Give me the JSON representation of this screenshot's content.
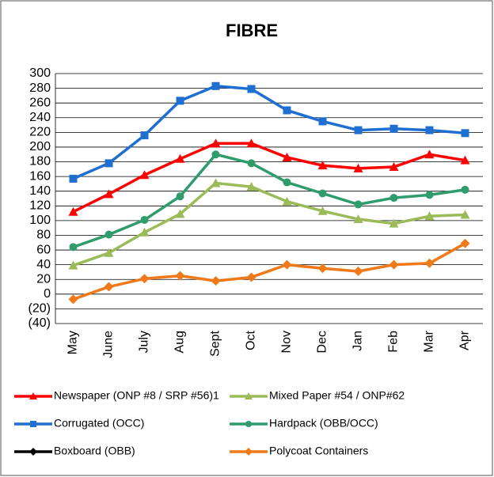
{
  "chart_data": {
    "type": "line",
    "title": "FIBRE",
    "categories": [
      "May",
      "June",
      "July",
      "Aug",
      "Sept",
      "Oct",
      "Nov",
      "Dec",
      "Jan",
      "Feb",
      "Mar",
      "Apr"
    ],
    "series": [
      {
        "name": "Newspaper (ONP #8 / SRP #56)1",
        "color": "#ff0000",
        "marker": "triangle",
        "values": [
          112,
          136,
          162,
          184,
          205,
          205,
          186,
          175,
          171,
          173,
          190,
          182
        ]
      },
      {
        "name": "Mixed Paper #54 / ONP#62",
        "color": "#9bbb59",
        "marker": "triangle",
        "values": [
          39,
          56,
          84,
          109,
          151,
          146,
          126,
          113,
          102,
          96,
          106,
          108
        ]
      },
      {
        "name": "Corrugated (OCC)",
        "color": "#1f6fd1",
        "marker": "square",
        "values": [
          157,
          178,
          216,
          263,
          283,
          279,
          250,
          235,
          223,
          225,
          223,
          219
        ]
      },
      {
        "name": "Hardpack (OBB/OCC)",
        "color": "#2e9c6c",
        "marker": "circle",
        "values": [
          64,
          81,
          101,
          133,
          190,
          178,
          152,
          137,
          122,
          131,
          135,
          142
        ]
      },
      {
        "name": "Boxboard (OBB)",
        "color": "#000000",
        "marker": "diamond",
        "values": [
          null,
          null,
          null,
          null,
          null,
          null,
          null,
          null,
          null,
          null,
          null,
          null
        ]
      },
      {
        "name": "Polycoat Containers",
        "color": "#f07a1a",
        "marker": "diamond",
        "values": [
          -7,
          10,
          21,
          25,
          18,
          23,
          40,
          35,
          31,
          40,
          42,
          69
        ]
      }
    ],
    "ylim": [
      -40,
      300
    ],
    "yticks": [
      {
        "value": -40,
        "label": "(40)"
      },
      {
        "value": -20,
        "label": "(20)"
      },
      0,
      20,
      40,
      60,
      80,
      100,
      120,
      140,
      160,
      180,
      200,
      220,
      240,
      260,
      280,
      300
    ],
    "grid": true
  }
}
